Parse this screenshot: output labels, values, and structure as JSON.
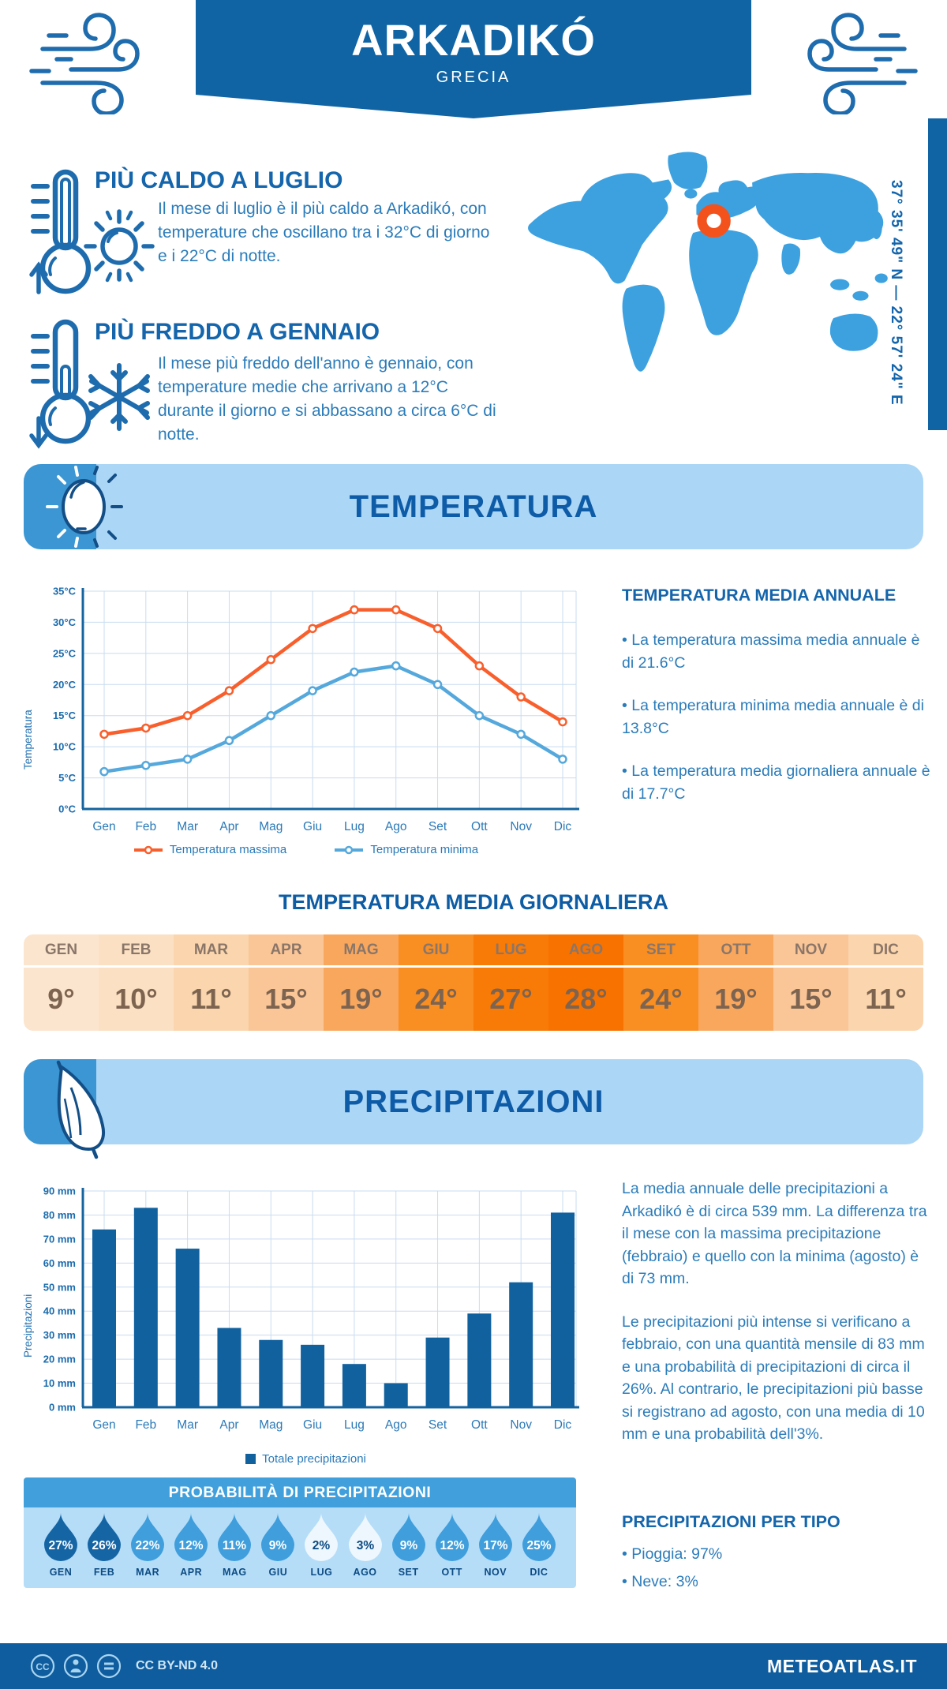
{
  "header": {
    "title": "ARKADIKÓ",
    "subtitle": "GRECIA",
    "coordinates": "37° 35' 49\" N — 22° 57' 24\" E"
  },
  "intro": {
    "hot": {
      "title": "PIÙ CALDO A LUGLIO",
      "text": "Il mese di luglio è il più caldo a Arkadikó, con temperature che oscillano tra i 32°C di giorno e i 22°C di notte."
    },
    "cold": {
      "title": "PIÙ FREDDO A GENNAIO",
      "text": "Il mese più freddo dell'anno è gennaio, con temperature medie che arrivano a 12°C durante il giorno e si abbassano a circa 6°C di notte."
    }
  },
  "temperature_section": {
    "banner": "TEMPERATURA",
    "annual": {
      "title": "TEMPERATURA MEDIA ANNUALE",
      "bullets": [
        "• La temperatura massima media annuale è di 21.6°C",
        "• La temperatura minima media annuale è di 13.8°C",
        "• La temperatura media giornaliera annuale è di 17.7°C"
      ]
    },
    "daily": {
      "title": "TEMPERATURA MEDIA GIORNALIERA",
      "months": [
        "GEN",
        "FEB",
        "MAR",
        "APR",
        "MAG",
        "GIU",
        "LUG",
        "AGO",
        "SET",
        "OTT",
        "NOV",
        "DIC"
      ],
      "values": [
        "9°",
        "10°",
        "11°",
        "15°",
        "19°",
        "24°",
        "27°",
        "28°",
        "24°",
        "19°",
        "15°",
        "11°"
      ],
      "cell_colors": [
        "#fce5cf",
        "#fce0c3",
        "#fbd5ad",
        "#fbc697",
        "#faa75e",
        "#f98e22",
        "#f87a07",
        "#f87200",
        "#f98e22",
        "#faa75e",
        "#fbc697",
        "#fbd5ad"
      ]
    }
  },
  "precipitation_section": {
    "banner": "PRECIPITAZIONI",
    "paragraphs": [
      "La media annuale delle precipitazioni a Arkadikó è di circa 539 mm. La differenza tra il mese con la massima precipitazione (febbraio) e quello con la minima (agosto) è di 73 mm.",
      "Le precipitazioni più intense si verificano a febbraio, con una quantità mensile di 83 mm e una probabilità di precipitazioni di circa il 26%. Al contrario, le precipitazioni più basse si registrano ad agosto, con una media di 10 mm e una probabilità dell'3%."
    ],
    "probability": {
      "title": "PROBABILITÀ DI PRECIPITAZIONI",
      "colors": {
        "dark": "#1565a5",
        "mid": "#3f9edb",
        "light": "#eef7fd"
      },
      "items": [
        {
          "month": "GEN",
          "value": "27%",
          "level": "dark"
        },
        {
          "month": "FEB",
          "value": "26%",
          "level": "dark"
        },
        {
          "month": "MAR",
          "value": "22%",
          "level": "mid"
        },
        {
          "month": "APR",
          "value": "12%",
          "level": "mid"
        },
        {
          "month": "MAG",
          "value": "11%",
          "level": "mid"
        },
        {
          "month": "GIU",
          "value": "9%",
          "level": "mid"
        },
        {
          "month": "LUG",
          "value": "2%",
          "level": "light"
        },
        {
          "month": "AGO",
          "value": "3%",
          "level": "light"
        },
        {
          "month": "SET",
          "value": "9%",
          "level": "mid"
        },
        {
          "month": "OTT",
          "value": "12%",
          "level": "mid"
        },
        {
          "month": "NOV",
          "value": "17%",
          "level": "mid"
        },
        {
          "month": "DIC",
          "value": "25%",
          "level": "mid"
        }
      ]
    },
    "types": {
      "title": "PRECIPITAZIONI PER TIPO",
      "bullets": [
        "• Pioggia: 97%",
        "• Neve: 3%"
      ]
    }
  },
  "chart_data": [
    {
      "type": "line",
      "categories": [
        "Gen",
        "Feb",
        "Mar",
        "Apr",
        "Mag",
        "Giu",
        "Lug",
        "Ago",
        "Set",
        "Ott",
        "Nov",
        "Dic"
      ],
      "series": [
        {
          "name": "Temperatura massima",
          "color": "#f85f2c",
          "values": [
            12,
            13,
            15,
            19,
            24,
            29,
            32,
            32,
            29,
            23,
            18,
            14
          ]
        },
        {
          "name": "Temperatura minima",
          "color": "#55a8dc",
          "values": [
            6,
            7,
            8,
            11,
            15,
            19,
            22,
            23,
            20,
            15,
            12,
            8
          ]
        }
      ],
      "ylabel": "Temperatura",
      "ylim": [
        0,
        35
      ],
      "ytick_step": 5,
      "ytick_suffix": "°C",
      "grid": true,
      "legend_position": "bottom"
    },
    {
      "type": "bar",
      "categories": [
        "Gen",
        "Feb",
        "Mar",
        "Apr",
        "Mag",
        "Giu",
        "Lug",
        "Ago",
        "Set",
        "Ott",
        "Nov",
        "Dic"
      ],
      "values": [
        74,
        83,
        66,
        33,
        28,
        26,
        18,
        10,
        29,
        39,
        52,
        81
      ],
      "series_name": "Totale precipitazioni",
      "color": "#11619f",
      "ylabel": "Precipitazioni",
      "ylim": [
        0,
        90
      ],
      "ytick_step": 10,
      "ytick_suffix": " mm",
      "grid": true,
      "legend_position": "bottom"
    }
  ],
  "footer": {
    "license": "CC BY-ND 4.0",
    "site": "METEOATLAS.IT"
  }
}
